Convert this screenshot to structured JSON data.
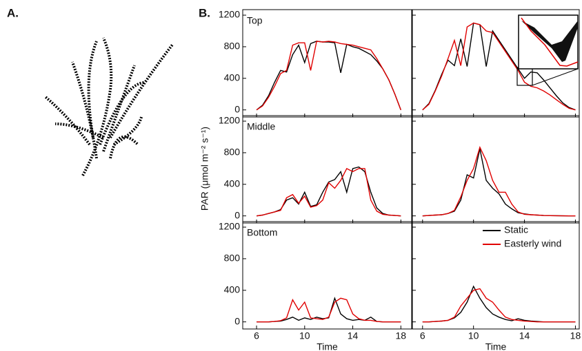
{
  "figure_labels": [
    "A.",
    "B."
  ],
  "y_label": "PAR (μmol m⁻² s⁻¹)",
  "chart_data": [
    {
      "type": "line",
      "title": "Top",
      "x": [
        6,
        6.5,
        7,
        7.5,
        8,
        8.5,
        9,
        9.5,
        10,
        10.5,
        11,
        11.5,
        12,
        12.5,
        13,
        13.5,
        14,
        14.5,
        15,
        15.5,
        16,
        16.5,
        17,
        17.5,
        18
      ],
      "xlim": [
        4.85,
        18.9
      ],
      "xticks": [
        6,
        10,
        14,
        18
      ],
      "ylim": [
        -90,
        1270
      ],
      "yticks": [
        0,
        400,
        800,
        1200
      ],
      "series": [
        {
          "color": "#000000",
          "values": [
            0,
            60,
            180,
            350,
            500,
            480,
            700,
            820,
            600,
            840,
            870,
            860,
            860,
            850,
            470,
            830,
            800,
            780,
            740,
            700,
            620,
            520,
            380,
            200,
            0
          ]
        },
        {
          "color": "#e00000",
          "values": [
            0,
            50,
            160,
            300,
            460,
            500,
            820,
            850,
            850,
            500,
            870,
            860,
            870,
            860,
            840,
            830,
            820,
            800,
            780,
            760,
            650,
            520,
            380,
            200,
            0
          ]
        }
      ]
    },
    {
      "type": "line",
      "x": [
        6,
        6.5,
        7,
        7.5,
        8,
        8.5,
        9,
        9.5,
        10,
        10.5,
        11,
        11.5,
        12,
        12.5,
        13,
        13.5,
        14,
        14.5,
        15,
        15.5,
        16,
        16.5,
        17,
        17.5,
        18
      ],
      "xlim": [
        5.2,
        18.3
      ],
      "xticks": [
        6,
        10,
        14,
        18
      ],
      "ylim": [
        -90,
        1270
      ],
      "yticks": [
        0,
        400,
        800,
        1200
      ],
      "series": [
        {
          "color": "#000000",
          "values": [
            0,
            80,
            250,
            450,
            630,
            560,
            900,
            550,
            1100,
            1080,
            550,
            1000,
            880,
            760,
            640,
            520,
            400,
            480,
            470,
            380,
            280,
            180,
            90,
            30,
            0
          ]
        },
        {
          "color": "#e00000",
          "values": [
            0,
            70,
            240,
            430,
            650,
            880,
            560,
            1050,
            1100,
            1080,
            1000,
            980,
            860,
            740,
            620,
            500,
            350,
            300,
            280,
            240,
            190,
            130,
            70,
            20,
            0
          ]
        }
      ]
    },
    {
      "type": "line",
      "title": "Middle",
      "x": [
        6,
        6.5,
        7,
        7.5,
        8,
        8.5,
        9,
        9.5,
        10,
        10.5,
        11,
        11.5,
        12,
        12.5,
        13,
        13.5,
        14,
        14.5,
        15,
        15.5,
        16,
        16.5,
        17,
        17.5,
        18
      ],
      "xlim": [
        4.85,
        18.9
      ],
      "xticks": [
        6,
        10,
        14,
        18
      ],
      "ylim": [
        -90,
        1270
      ],
      "yticks": [
        0,
        400,
        800,
        1200
      ],
      "series": [
        {
          "color": "#000000",
          "values": [
            0,
            10,
            30,
            50,
            80,
            200,
            230,
            150,
            300,
            120,
            140,
            300,
            430,
            460,
            560,
            300,
            600,
            620,
            560,
            300,
            100,
            30,
            10,
            5,
            0
          ]
        },
        {
          "color": "#e00000",
          "values": [
            0,
            10,
            30,
            50,
            70,
            230,
            270,
            160,
            250,
            110,
            130,
            200,
            420,
            350,
            450,
            600,
            560,
            600,
            600,
            200,
            60,
            20,
            10,
            5,
            0
          ]
        }
      ]
    },
    {
      "type": "line",
      "x": [
        6,
        6.5,
        7,
        7.5,
        8,
        8.5,
        9,
        9.5,
        10,
        10.5,
        11,
        11.5,
        12,
        12.5,
        13,
        13.5,
        14,
        14.5,
        15,
        15.5,
        16,
        16.5,
        17,
        17.5,
        18
      ],
      "xlim": [
        5.2,
        18.3
      ],
      "xticks": [
        6,
        10,
        14,
        18
      ],
      "ylim": [
        -90,
        1270
      ],
      "yticks": [
        0,
        400,
        800,
        1200
      ],
      "series": [
        {
          "color": "#000000",
          "values": [
            0,
            5,
            10,
            15,
            30,
            60,
            200,
            520,
            480,
            850,
            450,
            350,
            280,
            150,
            90,
            40,
            25,
            15,
            10,
            5,
            3,
            2,
            1,
            0,
            0
          ]
        },
        {
          "color": "#e00000",
          "values": [
            0,
            5,
            10,
            15,
            30,
            70,
            240,
            450,
            600,
            870,
            700,
            450,
            300,
            300,
            150,
            50,
            20,
            15,
            10,
            5,
            3,
            2,
            1,
            0,
            0
          ]
        }
      ]
    },
    {
      "type": "line",
      "title": "Bottom",
      "xlabel": "Time",
      "x": [
        6,
        6.5,
        7,
        7.5,
        8,
        8.5,
        9,
        9.5,
        10,
        10.5,
        11,
        11.5,
        12,
        12.5,
        13,
        13.5,
        14,
        14.5,
        15,
        15.5,
        16,
        16.5,
        17,
        17.5,
        18
      ],
      "xlim": [
        4.85,
        18.9
      ],
      "xticks": [
        6,
        10,
        14,
        18
      ],
      "ylim": [
        -90,
        1270
      ],
      "yticks": [
        0,
        400,
        800,
        1200
      ],
      "series": [
        {
          "color": "#000000",
          "values": [
            0,
            0,
            0,
            5,
            10,
            30,
            60,
            20,
            50,
            30,
            60,
            40,
            50,
            300,
            100,
            40,
            20,
            30,
            20,
            60,
            5,
            0,
            0,
            0,
            0
          ]
        },
        {
          "color": "#e00000",
          "values": [
            0,
            0,
            0,
            5,
            15,
            50,
            280,
            150,
            250,
            50,
            40,
            30,
            60,
            250,
            300,
            280,
            100,
            40,
            20,
            20,
            5,
            0,
            0,
            0,
            0
          ]
        }
      ]
    },
    {
      "type": "line",
      "xlabel": "Time",
      "x": [
        6,
        6.5,
        7,
        7.5,
        8,
        8.5,
        9,
        9.5,
        10,
        10.5,
        11,
        11.5,
        12,
        12.5,
        13,
        13.5,
        14,
        14.5,
        15,
        15.5,
        16,
        16.5,
        17,
        17.5,
        18
      ],
      "xlim": [
        5.2,
        18.3
      ],
      "xticks": [
        6,
        10,
        14,
        18
      ],
      "ylim": [
        -90,
        1270
      ],
      "yticks": [
        0,
        400,
        800,
        1200
      ],
      "series": [
        {
          "name": "Static",
          "color": "#000000",
          "values": [
            0,
            0,
            5,
            10,
            20,
            50,
            120,
            250,
            450,
            300,
            180,
            100,
            60,
            30,
            15,
            40,
            20,
            10,
            5,
            0,
            0,
            0,
            0,
            0,
            0
          ]
        },
        {
          "name": "Easterly wind",
          "color": "#e00000",
          "values": [
            0,
            0,
            5,
            10,
            20,
            60,
            200,
            300,
            400,
            420,
            300,
            250,
            150,
            60,
            30,
            20,
            10,
            5,
            0,
            0,
            0,
            0,
            0,
            0,
            0
          ]
        }
      ]
    }
  ]
}
